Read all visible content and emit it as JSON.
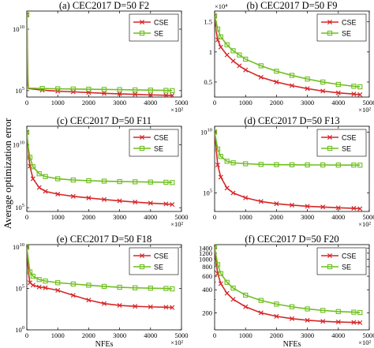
{
  "figure": {
    "ylabel": "Average optimization error",
    "series_names": [
      "CSE",
      "SE"
    ],
    "colors": {
      "CSE": "#d62728",
      "SE": "#6fbf1f"
    }
  },
  "chart_data": [
    {
      "type": "line",
      "title": "(a)  CEC2017 D=50 F2",
      "xlabel": "",
      "x_multiplier": "×10²",
      "y_multiplier": "",
      "yscale": "log",
      "xlim": [
        0,
        5000
      ],
      "x_ticks": [
        "0",
        "1000",
        "2000",
        "3000",
        "4000",
        "5000"
      ],
      "ylim": [
        30000,
        300000000000.0
      ],
      "y_ticks": [
        {
          "v": 100000,
          "label": "10",
          "sup": "5"
        },
        {
          "v": 10000000000.0,
          "label": "10",
          "sup": "10"
        }
      ],
      "legend": "top-right",
      "x": [
        0,
        10,
        20,
        30,
        40,
        50,
        500,
        1000,
        1500,
        2000,
        2500,
        3000,
        3500,
        4000,
        4500,
        4700
      ],
      "series": [
        {
          "name": "CSE",
          "values": [
            150000000000.0,
            10000000000.0,
            200000000.0,
            3000000.0,
            400000.0,
            150000.0,
            110000.0,
            90000.0,
            80000.0,
            70000.0,
            60000.0,
            55000.0,
            50000.0,
            45000.0,
            42000.0,
            40000.0
          ]
        },
        {
          "name": "SE",
          "values": [
            150000000000.0,
            3000000000.0,
            20000000.0,
            500000.0,
            200000.0,
            160000.0,
            150000.0,
            140000.0,
            135000.0,
            130000.0,
            125000.0,
            120000.0,
            115000.0,
            110000.0,
            105000.0,
            100000.0
          ]
        }
      ]
    },
    {
      "type": "line",
      "title": "(b)  CEC2017 D=50 F9",
      "xlabel": "",
      "x_multiplier": "×10²",
      "y_multiplier": "×10⁴",
      "yscale": "linear",
      "xlim": [
        0,
        5000
      ],
      "x_ticks": [
        "0",
        "1000",
        "2000",
        "3000",
        "4000",
        "5000"
      ],
      "ylim": [
        0.25,
        1.68
      ],
      "y_ticks": [
        {
          "v": 0.5,
          "label": "0.5"
        },
        {
          "v": 1,
          "label": "1"
        },
        {
          "v": 1.5,
          "label": "1.5"
        }
      ],
      "legend": "top-right",
      "x": [
        0,
        50,
        100,
        200,
        400,
        600,
        800,
        1000,
        1500,
        2000,
        2500,
        3000,
        3500,
        4000,
        4500,
        4700
      ],
      "series": [
        {
          "name": "CSE",
          "values": [
            1.6,
            1.35,
            1.2,
            1.08,
            0.95,
            0.85,
            0.77,
            0.7,
            0.58,
            0.5,
            0.44,
            0.39,
            0.35,
            0.32,
            0.3,
            0.29
          ]
        },
        {
          "name": "SE",
          "values": [
            1.6,
            1.5,
            1.38,
            1.25,
            1.12,
            1.02,
            0.95,
            0.88,
            0.77,
            0.68,
            0.61,
            0.55,
            0.5,
            0.46,
            0.43,
            0.42
          ]
        }
      ]
    },
    {
      "type": "line",
      "title": "(c)  CEC2017 D=50 F11",
      "xlabel": "",
      "x_multiplier": "×10²",
      "y_multiplier": "",
      "yscale": "log",
      "xlim": [
        0,
        5000
      ],
      "x_ticks": [
        "0",
        "1000",
        "2000",
        "3000",
        "4000",
        "5000"
      ],
      "ylim": [
        50000,
        300000000000.0
      ],
      "y_ticks": [
        {
          "v": 100000,
          "label": "10",
          "sup": "5"
        },
        {
          "v": 10000000000.0,
          "label": "10",
          "sup": "10"
        }
      ],
      "legend": "top-right",
      "x": [
        0,
        50,
        100,
        200,
        400,
        600,
        1000,
        1500,
        2000,
        2500,
        3000,
        3500,
        4000,
        4500,
        4700
      ],
      "series": [
        {
          "name": "CSE",
          "values": [
            100000000000.0,
            3000000000.0,
            200000000.0,
            20000000.0,
            4000000.0,
            2000000.0,
            1200000.0,
            800000.0,
            600000.0,
            450000.0,
            350000.0,
            280000.0,
            230000.0,
            200000.0,
            180000.0
          ]
        },
        {
          "name": "SE",
          "values": [
            100000000000.0,
            6000000000.0,
            1000000000.0,
            180000000.0,
            50000000.0,
            30000000.0,
            20000000.0,
            16000000.0,
            14000000.0,
            13000000.0,
            12000000.0,
            11500000.0,
            11000000.0,
            10500000.0,
            10000000.0
          ]
        }
      ]
    },
    {
      "type": "line",
      "title": "(d)  CEC2017 D=50 F13",
      "xlabel": "",
      "x_multiplier": "×10²",
      "y_multiplier": "",
      "yscale": "log",
      "xlim": [
        0,
        5000
      ],
      "x_ticks": [
        "0",
        "1000",
        "2000",
        "3000",
        "4000",
        "5000"
      ],
      "ylim": [
        3000,
        30000000000.0
      ],
      "y_ticks": [
        {
          "v": 100000,
          "label": "10",
          "sup": "5"
        },
        {
          "v": 10000000000.0,
          "label": "10",
          "sup": "10"
        }
      ],
      "legend": "top-right",
      "x": [
        0,
        50,
        100,
        200,
        400,
        600,
        1000,
        1500,
        2000,
        2500,
        3000,
        3500,
        4000,
        4500,
        4700
      ],
      "series": [
        {
          "name": "CSE",
          "values": [
            10000000000.0,
            500000000.0,
            20000000.0,
            2000000.0,
            250000.0,
            100000.0,
            40000.0,
            20000.0,
            13000.0,
            10000.0,
            8000.0,
            7000.0,
            6000.0,
            5500.0,
            5000.0
          ]
        },
        {
          "name": "SE",
          "values": [
            10000000000.0,
            2000000000.0,
            400000000.0,
            100000000.0,
            40000000.0,
            30000000.0,
            25000000.0,
            22000000.0,
            21000000.0,
            20500000.0,
            20000000.0,
            20000000.0,
            19500000.0,
            19500000.0,
            19000000.0
          ]
        }
      ]
    },
    {
      "type": "line",
      "title": "(e)  CEC2017 D=50 F18",
      "xlabel": "NFEs",
      "x_multiplier": "×10²",
      "y_multiplier": "",
      "yscale": "log",
      "xlim": [
        0,
        5000
      ],
      "x_ticks": [
        "0",
        "1000",
        "2000",
        "3000",
        "4000",
        "5000"
      ],
      "ylim": [
        1,
        20000000000.0
      ],
      "y_ticks": [
        {
          "v": 1,
          "label": "10",
          "sup": "0"
        },
        {
          "v": 100000,
          "label": "10",
          "sup": "5"
        },
        {
          "v": 10000000000.0,
          "label": "10",
          "sup": "10"
        }
      ],
      "legend": "top-right",
      "x": [
        0,
        50,
        100,
        200,
        400,
        600,
        1000,
        1500,
        2000,
        2500,
        3000,
        3500,
        4000,
        4500,
        4700
      ],
      "series": [
        {
          "name": "CSE",
          "values": [
            10000000000.0,
            10000000.0,
            500000.0,
            250000.0,
            150000.0,
            120000.0,
            60000.0,
            15000.0,
            4000.0,
            1500.0,
            900,
            700,
            600,
            550,
            500
          ]
        },
        {
          "name": "SE",
          "values": [
            10000000000.0,
            300000000.0,
            10000000.0,
            3000000.0,
            1200000.0,
            800000.0,
            500000.0,
            350000.0,
            250000.0,
            180000.0,
            140000.0,
            120000.0,
            110000.0,
            100000.0,
            90000.0
          ]
        }
      ]
    },
    {
      "type": "line",
      "title": "(f)  CEC2017 D=50 F20",
      "xlabel": "NFEs",
      "x_multiplier": "×10²",
      "y_multiplier": "",
      "yscale": "log",
      "xlim": [
        0,
        5000
      ],
      "x_ticks": [
        "0",
        "1000",
        "2000",
        "3000",
        "4000",
        "5000"
      ],
      "ylim": [
        120,
        1550
      ],
      "y_ticks": [
        {
          "v": 200,
          "label": "200"
        },
        {
          "v": 400,
          "label": "400"
        },
        {
          "v": 600,
          "label": "600"
        },
        {
          "v": 800,
          "label": "800"
        },
        {
          "v": 1000,
          "label": "1000"
        },
        {
          "v": 1200,
          "label": "1200"
        },
        {
          "v": 1400,
          "label": "1400"
        }
      ],
      "legend": "top-right",
      "x": [
        0,
        50,
        100,
        200,
        400,
        600,
        1000,
        1500,
        2000,
        2500,
        3000,
        3500,
        4000,
        4500,
        4700
      ],
      "series": [
        {
          "name": "CSE",
          "values": [
            1450,
            900,
            650,
            480,
            360,
            300,
            240,
            200,
            180,
            168,
            160,
            155,
            152,
            150,
            149
          ]
        },
        {
          "name": "SE",
          "values": [
            1450,
            1100,
            850,
            650,
            500,
            420,
            340,
            290,
            260,
            240,
            225,
            215,
            208,
            204,
            202
          ]
        }
      ]
    }
  ]
}
